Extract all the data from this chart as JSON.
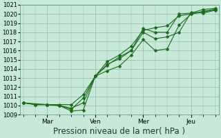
{
  "xlabel": "Pression niveau de la mer( hPa )",
  "bg_color": "#c8e8d8",
  "grid_color": "#90b8a8",
  "line_color": "#1a6b1a",
  "ylim": [
    1009,
    1021
  ],
  "yticks": [
    1009,
    1010,
    1011,
    1012,
    1013,
    1014,
    1015,
    1016,
    1017,
    1018,
    1019,
    1020,
    1021
  ],
  "day_labels": [
    "Mar",
    "Ven",
    "Mer",
    "Jeu"
  ],
  "day_positions": [
    14,
    42,
    70,
    98
  ],
  "n_points": 112,
  "line1_x": [
    0,
    7,
    14,
    21,
    28,
    35,
    42,
    49,
    56,
    63,
    70,
    77,
    84,
    91,
    98,
    105,
    112
  ],
  "line1_y": [
    1010.3,
    1010.1,
    1010.1,
    1010.0,
    1009.4,
    1009.5,
    1013.2,
    1014.5,
    1015.1,
    1016.0,
    1018.4,
    1018.0,
    1018.0,
    1020.0,
    1020.1,
    1020.5,
    1020.6
  ],
  "line2_x": [
    0,
    7,
    14,
    21,
    28,
    35,
    42,
    49,
    56,
    63,
    70,
    77,
    84,
    91,
    98,
    105,
    112
  ],
  "line2_y": [
    1010.3,
    1010.1,
    1010.1,
    1010.0,
    1009.7,
    1010.3,
    1013.2,
    1014.8,
    1015.5,
    1016.5,
    1018.2,
    1018.5,
    1018.7,
    1019.8,
    1020.0,
    1020.2,
    1020.5
  ],
  "line3_x": [
    0,
    14,
    21,
    28,
    35,
    42,
    49,
    56,
    63,
    70,
    77,
    84,
    91,
    98,
    105,
    112
  ],
  "line3_y": [
    1010.3,
    1010.1,
    1010.0,
    1009.6,
    1010.8,
    1013.2,
    1014.4,
    1015.3,
    1016.0,
    1018.0,
    1017.3,
    1017.5,
    1018.0,
    1020.2,
    1020.1,
    1020.4
  ],
  "line4_x": [
    0,
    7,
    14,
    21,
    28,
    35,
    42,
    49,
    56,
    63,
    70,
    77,
    84,
    91,
    98,
    105,
    112
  ],
  "line4_y": [
    1010.3,
    1010.1,
    1010.1,
    1010.1,
    1010.1,
    1011.2,
    1013.2,
    1013.8,
    1014.3,
    1015.5,
    1017.2,
    1016.0,
    1016.2,
    1018.8,
    1020.0,
    1020.3,
    1020.5
  ],
  "xlim_left": -2,
  "xlim_right": 114,
  "marker_size": 2.5,
  "line_width": 0.8,
  "xlabel_fontsize": 8.5,
  "tick_fontsize": 6.0
}
